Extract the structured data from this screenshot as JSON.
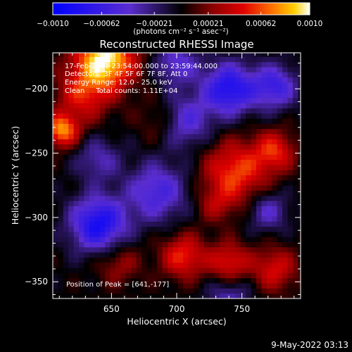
{
  "chart_data": {
    "type": "heatmap",
    "title": "Reconstructed RHESSI Image",
    "xlabel": "Heliocentric X (arcsec)",
    "ylabel": "Heliocentric Y (arcsec)",
    "xlim": [
      605,
      795
    ],
    "ylim": [
      -363,
      -172
    ],
    "x_ticks": [
      650,
      700,
      750
    ],
    "y_ticks": [
      -200,
      -250,
      -300,
      -350
    ],
    "x_tick_labels": [
      "650",
      "700",
      "750"
    ],
    "y_tick_labels": [
      "−200",
      "−250",
      "−300",
      "−350"
    ],
    "colorbar": {
      "range": [
        -0.001,
        0.001
      ],
      "tick_labels": [
        "−0.0010",
        "−0.00062",
        "−0.00021",
        "0.00021",
        "0.00062",
        "0.0010"
      ],
      "tick_values": [
        -0.001,
        -0.00062,
        -0.00021,
        0.00021,
        0.00062,
        0.001
      ],
      "unit_label": "(photons cm⁻² s⁻¹ asec⁻²)",
      "colors": [
        "#0000ff",
        "#5a2dd0",
        "#000000",
        "#8a0000",
        "#e00000",
        "#ff7800",
        "#ffd000",
        "#ffffff"
      ]
    },
    "info_lines": [
      "17-Feb-2011 23:54:00.000 to 23:59:44.000",
      "Detectors: 3F 4F 5F 6F 7F 8F, Att 0",
      "Energy Range: 12.0 - 25.0 keV",
      "Clean     Total counts: 1.11E+04"
    ],
    "peak_label": "Position of Peak = [641,-177]",
    "peak": [
      641,
      -177
    ],
    "timestamp": "9-May-2022 03:13",
    "features": [
      {
        "x": 645,
        "y": -177,
        "sigma": 16,
        "amp": 1.0
      },
      {
        "x": 612,
        "y": -232,
        "sigma": 9,
        "amp": 0.75
      },
      {
        "x": 628,
        "y": -205,
        "sigma": 14,
        "amp": 0.45
      },
      {
        "x": 745,
        "y": -265,
        "sigma": 17,
        "amp": 0.6
      },
      {
        "x": 775,
        "y": -248,
        "sigma": 11,
        "amp": 0.5
      },
      {
        "x": 705,
        "y": -330,
        "sigma": 12,
        "amp": 0.55
      },
      {
        "x": 740,
        "y": -335,
        "sigma": 11,
        "amp": 0.5
      },
      {
        "x": 775,
        "y": -340,
        "sigma": 12,
        "amp": 0.45
      },
      {
        "x": 690,
        "y": -225,
        "sigma": 12,
        "amp": 0.3
      },
      {
        "x": 655,
        "y": -335,
        "sigma": 12,
        "amp": 0.3
      },
      {
        "x": 730,
        "y": -290,
        "sigma": 10,
        "amp": 0.25
      },
      {
        "x": 640,
        "y": -305,
        "sigma": 15,
        "amp": -0.85
      },
      {
        "x": 685,
        "y": -280,
        "sigma": 16,
        "amp": -0.55
      },
      {
        "x": 740,
        "y": -200,
        "sigma": 14,
        "amp": -0.8
      },
      {
        "x": 705,
        "y": -225,
        "sigma": 14,
        "amp": -0.55
      },
      {
        "x": 775,
        "y": -198,
        "sigma": 12,
        "amp": -0.6
      },
      {
        "x": 700,
        "y": -180,
        "sigma": 12,
        "amp": -0.45
      },
      {
        "x": 770,
        "y": -295,
        "sigma": 11,
        "amp": -0.4
      },
      {
        "x": 640,
        "y": -255,
        "sigma": 12,
        "amp": -0.35
      },
      {
        "x": 740,
        "y": -362,
        "sigma": 12,
        "amp": -0.35
      }
    ]
  }
}
